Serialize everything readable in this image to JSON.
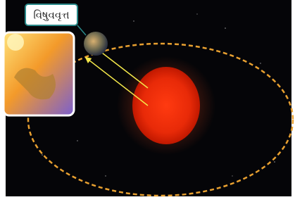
{
  "label": {
    "text": "વિષુવવૃત્ત"
  }
}
